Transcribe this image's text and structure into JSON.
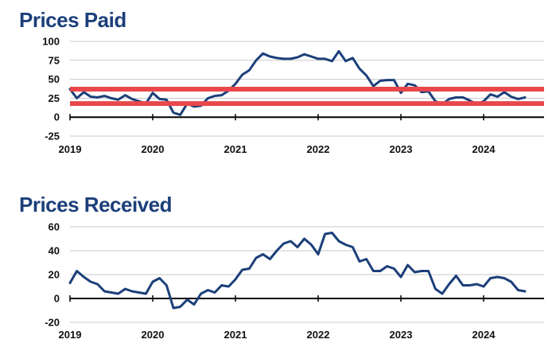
{
  "chart_data": [
    {
      "type": "line",
      "title": "Prices Paid",
      "xlabel": "",
      "ylabel": "",
      "ylim": [
        -25,
        100
      ],
      "yticks": [
        "100",
        "75",
        "50",
        "25",
        "0",
        "-25"
      ],
      "ytick_values": [
        100,
        75,
        50,
        25,
        0,
        -25
      ],
      "xticks": [
        "2019",
        "2020",
        "2021",
        "2022",
        "2023",
        "2024"
      ],
      "xtick_values": [
        2019,
        2020,
        2021,
        2022,
        2023,
        2024
      ],
      "xlim": [
        2019,
        2024.5
      ],
      "zero_line": true,
      "series": [
        {
          "name": "Prices Paid",
          "color": "#1c3f7a",
          "x": [
            2019.0,
            2019.083,
            2019.167,
            2019.25,
            2019.333,
            2019.417,
            2019.5,
            2019.583,
            2019.667,
            2019.75,
            2019.833,
            2019.917,
            2020.0,
            2020.083,
            2020.167,
            2020.25,
            2020.333,
            2020.417,
            2020.5,
            2020.583,
            2020.667,
            2020.75,
            2020.833,
            2020.917,
            2021.0,
            2021.083,
            2021.167,
            2021.25,
            2021.333,
            2021.417,
            2021.5,
            2021.583,
            2021.667,
            2021.75,
            2021.833,
            2021.917,
            2022.0,
            2022.083,
            2022.167,
            2022.25,
            2022.333,
            2022.417,
            2022.5,
            2022.583,
            2022.667,
            2022.75,
            2022.833,
            2022.917,
            2023.0,
            2023.083,
            2023.167,
            2023.25,
            2023.333,
            2023.417,
            2023.5,
            2023.583,
            2023.667,
            2023.75,
            2023.833,
            2023.917,
            2024.0,
            2024.083,
            2024.167,
            2024.25,
            2024.333,
            2024.417,
            2024.5
          ],
          "values": [
            37,
            25,
            33,
            27,
            26,
            28,
            25,
            23,
            29,
            24,
            21,
            18,
            32,
            24,
            23,
            6,
            3,
            18,
            14,
            15,
            25,
            28,
            29,
            35,
            44,
            56,
            62,
            75,
            84,
            80,
            78,
            77,
            77,
            79,
            83,
            80,
            77,
            77,
            74,
            87,
            74,
            78,
            64,
            55,
            41,
            48,
            49,
            49,
            32,
            44,
            42,
            33,
            34,
            21,
            17,
            24,
            26,
            26,
            22,
            17,
            21,
            30,
            27,
            33,
            27,
            24,
            26
          ]
        }
      ],
      "reference_lines": [
        {
          "value": 37,
          "color": "#e8474b"
        },
        {
          "value": 18,
          "color": "#e8474b"
        }
      ]
    },
    {
      "type": "line",
      "title": "Prices Received",
      "xlabel": "",
      "ylabel": "",
      "ylim": [
        -20,
        60
      ],
      "yticks": [
        "60",
        "40",
        "20",
        "0",
        "-20"
      ],
      "ytick_values": [
        60,
        40,
        20,
        0,
        -20
      ],
      "xticks": [
        "2019",
        "2020",
        "2021",
        "2022",
        "2023",
        "2024"
      ],
      "xtick_values": [
        2019,
        2020,
        2021,
        2022,
        2023,
        2024
      ],
      "xlim": [
        2019,
        2024.5
      ],
      "zero_line": true,
      "series": [
        {
          "name": "Prices Received",
          "color": "#1c3f7a",
          "x": [
            2019.0,
            2019.083,
            2019.167,
            2019.25,
            2019.333,
            2019.417,
            2019.5,
            2019.583,
            2019.667,
            2019.75,
            2019.833,
            2019.917,
            2020.0,
            2020.083,
            2020.167,
            2020.25,
            2020.333,
            2020.417,
            2020.5,
            2020.583,
            2020.667,
            2020.75,
            2020.833,
            2020.917,
            2021.0,
            2021.083,
            2021.167,
            2021.25,
            2021.333,
            2021.417,
            2021.5,
            2021.583,
            2021.667,
            2021.75,
            2021.833,
            2021.917,
            2022.0,
            2022.083,
            2022.167,
            2022.25,
            2022.333,
            2022.417,
            2022.5,
            2022.583,
            2022.667,
            2022.75,
            2022.833,
            2022.917,
            2023.0,
            2023.083,
            2023.167,
            2023.25,
            2023.333,
            2023.417,
            2023.5,
            2023.583,
            2023.667,
            2023.75,
            2023.833,
            2023.917,
            2024.0,
            2024.083,
            2024.167,
            2024.25,
            2024.333,
            2024.417,
            2024.5
          ],
          "values": [
            13,
            23,
            18,
            14,
            12,
            6,
            5,
            4,
            8,
            6,
            5,
            4,
            14,
            17,
            11,
            -8,
            -7,
            -1,
            -5,
            4,
            7,
            5,
            11,
            10,
            16,
            24,
            25,
            34,
            37,
            33,
            40,
            46,
            48,
            43,
            50,
            45,
            37,
            54,
            55,
            48,
            45,
            43,
            31,
            33,
            23,
            23,
            27,
            25,
            18,
            28,
            22,
            23,
            23,
            8,
            4,
            12,
            19,
            11,
            11,
            12,
            10,
            17,
            18,
            17,
            14,
            7,
            6
          ]
        }
      ]
    }
  ],
  "style": {
    "title_color": "#1c3f7a",
    "line_color": "#1c3f7a",
    "axis_color": "#000000",
    "grid_color": "#c8c8c8",
    "ref_line_color": "#e8474b"
  }
}
